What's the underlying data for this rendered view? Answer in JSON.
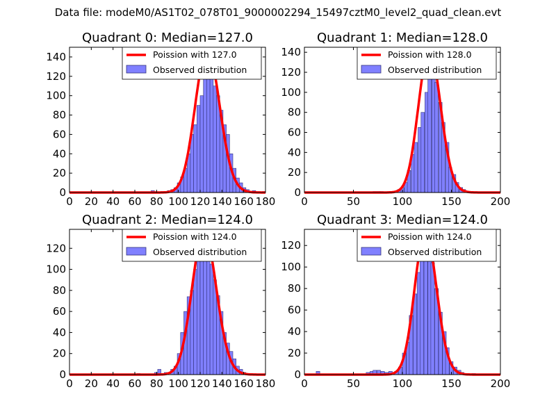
{
  "figure_title": "Data file: modeM0/AS1T02_078T01_9000002294_15497cztM0_level2_quad_clean.evt",
  "colors": {
    "curve": "#ff0000",
    "bar_fill": "#8080ff",
    "bar_edge": "#33337a",
    "frame": "#000000"
  },
  "chart_data": [
    {
      "type": "bar",
      "title": "Quadrant 0: Median=127.0",
      "median": 127.0,
      "xlim": [
        0,
        180
      ],
      "ylim": [
        0,
        150
      ],
      "xticks": [
        0,
        20,
        40,
        60,
        80,
        100,
        120,
        140,
        160,
        180
      ],
      "yticks": [
        0,
        20,
        40,
        60,
        80,
        100,
        120,
        140
      ],
      "bin_width": 3,
      "bins": [
        [
          75,
          2
        ],
        [
          84,
          1
        ],
        [
          87,
          1
        ],
        [
          90,
          2
        ],
        [
          93,
          3
        ],
        [
          96,
          5
        ],
        [
          99,
          10
        ],
        [
          102,
          16
        ],
        [
          105,
          25
        ],
        [
          108,
          40
        ],
        [
          111,
          60
        ],
        [
          114,
          70
        ],
        [
          117,
          90
        ],
        [
          120,
          100
        ],
        [
          123,
          118
        ],
        [
          126,
          140
        ],
        [
          129,
          130
        ],
        [
          132,
          110
        ],
        [
          135,
          100
        ],
        [
          138,
          85
        ],
        [
          141,
          70
        ],
        [
          144,
          60
        ],
        [
          147,
          40
        ],
        [
          150,
          25
        ],
        [
          153,
          15
        ],
        [
          156,
          10
        ],
        [
          159,
          5
        ],
        [
          162,
          3
        ],
        [
          168,
          2
        ],
        [
          177,
          1
        ]
      ],
      "legend": [
        "Poission with 127.0",
        "Observed distribution"
      ]
    },
    {
      "type": "bar",
      "title": "Quadrant 1: Median=128.0",
      "median": 128.0,
      "xlim": [
        0,
        200
      ],
      "ylim": [
        0,
        145
      ],
      "xticks": [
        0,
        50,
        100,
        150,
        200
      ],
      "yticks": [
        0,
        20,
        40,
        60,
        80,
        100,
        120,
        140
      ],
      "bin_width": 3.5,
      "bins": [
        [
          70,
          1
        ],
        [
          74,
          1
        ],
        [
          77,
          1
        ],
        [
          88,
          1
        ],
        [
          95,
          3
        ],
        [
          98,
          5
        ],
        [
          102,
          10
        ],
        [
          105,
          22
        ],
        [
          109,
          38
        ],
        [
          112,
          50
        ],
        [
          116,
          65
        ],
        [
          119,
          80
        ],
        [
          123,
          100
        ],
        [
          126,
          120
        ],
        [
          130,
          132
        ],
        [
          133,
          110
        ],
        [
          137,
          90
        ],
        [
          140,
          70
        ],
        [
          144,
          50
        ],
        [
          147,
          25
        ],
        [
          151,
          18
        ],
        [
          154,
          10
        ],
        [
          158,
          5
        ],
        [
          161,
          3
        ]
      ],
      "legend": [
        "Poission with 128.0",
        "Observed distribution"
      ]
    },
    {
      "type": "bar",
      "title": "Quadrant 2: Median=124.0",
      "median": 124.0,
      "xlim": [
        0,
        180
      ],
      "ylim": [
        0,
        138
      ],
      "xticks": [
        0,
        20,
        40,
        60,
        80,
        100,
        120,
        140,
        160,
        180
      ],
      "yticks": [
        0,
        20,
        40,
        60,
        80,
        100,
        120
      ],
      "bin_width": 3,
      "bins": [
        [
          62,
          1
        ],
        [
          78,
          2
        ],
        [
          81,
          5
        ],
        [
          87,
          2
        ],
        [
          93,
          5
        ],
        [
          96,
          8
        ],
        [
          99,
          20
        ],
        [
          102,
          40
        ],
        [
          105,
          60
        ],
        [
          108,
          74
        ],
        [
          111,
          80
        ],
        [
          114,
          100
        ],
        [
          117,
          110
        ],
        [
          120,
          120
        ],
        [
          123,
          130
        ],
        [
          126,
          125
        ],
        [
          129,
          105
        ],
        [
          132,
          90
        ],
        [
          135,
          75
        ],
        [
          138,
          60
        ],
        [
          141,
          40
        ],
        [
          144,
          30
        ],
        [
          147,
          22
        ],
        [
          150,
          15
        ],
        [
          153,
          8
        ],
        [
          156,
          5
        ],
        [
          159,
          2
        ],
        [
          162,
          1
        ]
      ],
      "legend": [
        "Poission with 124.0",
        "Observed distribution"
      ]
    },
    {
      "type": "bar",
      "title": "Quadrant 3: Median=124.0",
      "median": 124.0,
      "xlim": [
        0,
        200
      ],
      "ylim": [
        0,
        135
      ],
      "xticks": [
        0,
        50,
        100,
        150,
        200
      ],
      "yticks": [
        0,
        20,
        40,
        60,
        80,
        100,
        120
      ],
      "bin_width": 3.7,
      "bins": [
        [
          12,
          3
        ],
        [
          63,
          2
        ],
        [
          67,
          3
        ],
        [
          70,
          4
        ],
        [
          74,
          4
        ],
        [
          78,
          3
        ],
        [
          82,
          2
        ],
        [
          86,
          3
        ],
        [
          92,
          3
        ],
        [
          96,
          7
        ],
        [
          100,
          20
        ],
        [
          104,
          30
        ],
        [
          107,
          55
        ],
        [
          111,
          75
        ],
        [
          115,
          95
        ],
        [
          118,
          120
        ],
        [
          122,
          122
        ],
        [
          126,
          115
        ],
        [
          129,
          104
        ],
        [
          133,
          80
        ],
        [
          137,
          58
        ],
        [
          141,
          40
        ],
        [
          144,
          25
        ],
        [
          148,
          12
        ],
        [
          152,
          7
        ],
        [
          156,
          4
        ],
        [
          159,
          2
        ],
        [
          171,
          1
        ]
      ],
      "legend": [
        "Poission with 124.0",
        "Observed distribution"
      ]
    }
  ]
}
